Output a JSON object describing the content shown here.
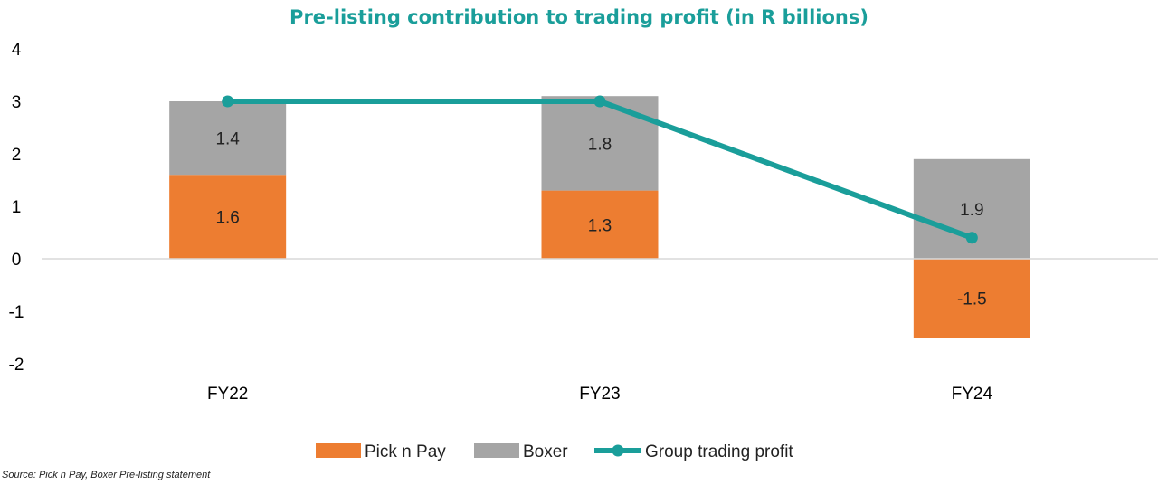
{
  "chart_data": {
    "type": "bar",
    "stacked": true,
    "title": "Pre-listing contribution to trading profit (in R billions)",
    "categories": [
      "FY22",
      "FY23",
      "FY24"
    ],
    "ylim": [
      -2,
      4
    ],
    "yticks": [
      4,
      3,
      2,
      1,
      0,
      -1,
      -2
    ],
    "grid": false,
    "legend_position": "bottom",
    "series": [
      {
        "name": "Pick n Pay",
        "type": "bar",
        "color": "#ED7D31",
        "values": [
          1.6,
          1.3,
          -1.5
        ],
        "labels": [
          "1.6",
          "1.3",
          "-1.5"
        ]
      },
      {
        "name": "Boxer",
        "type": "bar",
        "color": "#A5A5A5",
        "values": [
          1.4,
          1.8,
          1.9
        ],
        "labels": [
          "1.4",
          "1.8",
          "1.9"
        ]
      },
      {
        "name": "Group trading profit",
        "type": "line",
        "color": "#1A9E9A",
        "values": [
          3.0,
          3.0,
          0.4
        ]
      }
    ],
    "source": "Source: Pick n Pay, Boxer Pre-listing statement"
  }
}
